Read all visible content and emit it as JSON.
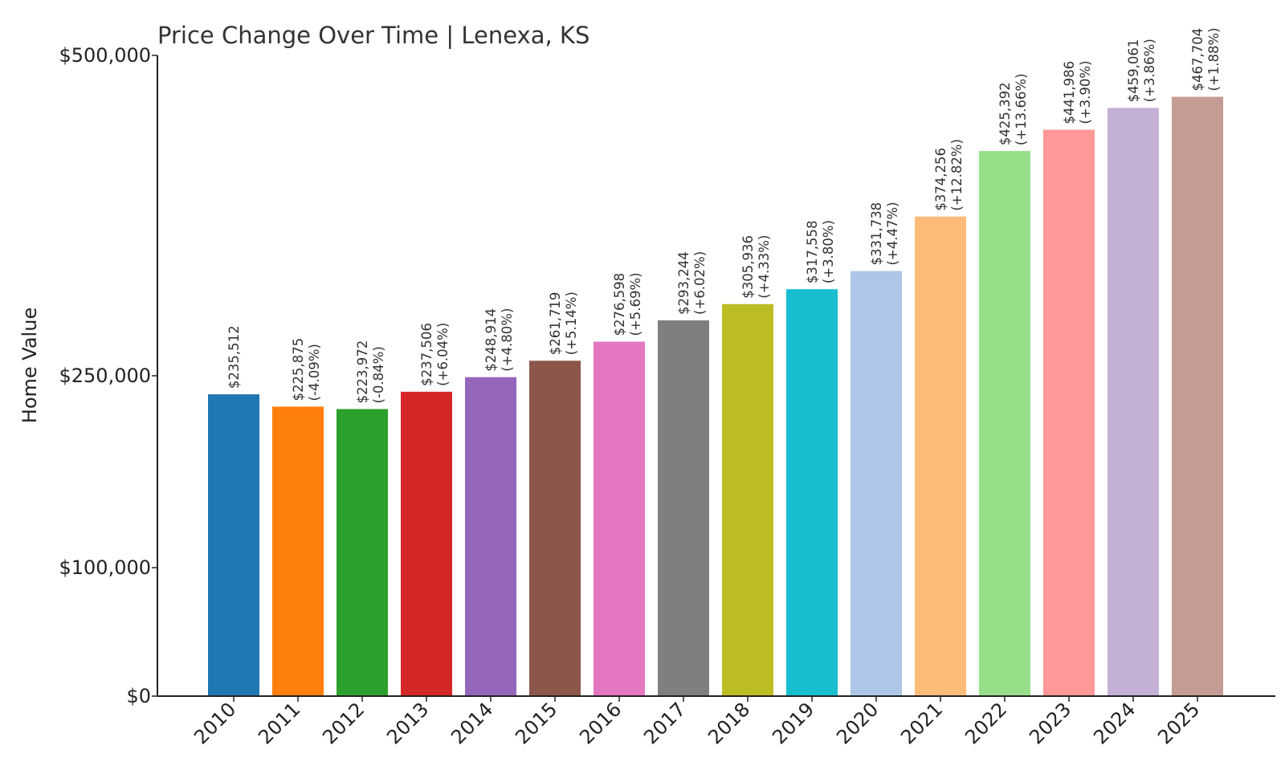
{
  "chart_data": {
    "type": "bar",
    "title": "Price Change Over Time | Lenexa, KS",
    "xlabel": "",
    "ylabel": "Home Value",
    "ylim": [
      0,
      500000
    ],
    "yticks": [
      {
        "value": 0,
        "label": "$0"
      },
      {
        "value": 100000,
        "label": "$100,000"
      },
      {
        "value": 250000,
        "label": "$250,000"
      },
      {
        "value": 500000,
        "label": "$500,000"
      }
    ],
    "y_scale": "custom piecewise (ticks at $0, $100,000, $250,000, $500,000)",
    "grid": false,
    "categories": [
      "2010",
      "2011",
      "2012",
      "2013",
      "2014",
      "2015",
      "2016",
      "2017",
      "2018",
      "2019",
      "2020",
      "2021",
      "2022",
      "2023",
      "2024",
      "2025"
    ],
    "values": [
      235512,
      225875,
      223972,
      237506,
      248914,
      261719,
      276598,
      293244,
      305936,
      317558,
      331738,
      374256,
      425392,
      441986,
      459061,
      467704
    ],
    "value_labels": [
      "$235,512",
      "$225,875",
      "$223,972",
      "$237,506",
      "$248,914",
      "$261,719",
      "$276,598",
      "$293,244",
      "$305,936",
      "$317,558",
      "$331,738",
      "$374,256",
      "$425,392",
      "$441,986",
      "$459,061",
      "$467,704"
    ],
    "change_labels": [
      "",
      "(-4.09%)",
      "(-0.84%)",
      "(+6.04%)",
      "(+4.80%)",
      "(+5.14%)",
      "(+5.69%)",
      "(+6.02%)",
      "(+4.33%)",
      "(+3.80%)",
      "(+4.47%)",
      "(+12.82%)",
      "(+13.66%)",
      "(+3.90%)",
      "(+3.86%)",
      "(+1.88%)"
    ],
    "colors": [
      "#1f77b4",
      "#ff7f0e",
      "#2ca02c",
      "#d62728",
      "#9467bd",
      "#8c564b",
      "#e377c2",
      "#7f7f7f",
      "#bcbd22",
      "#17becf",
      "#aec7e8",
      "#ffbb78",
      "#98df8a",
      "#ff9896",
      "#c5b0d5",
      "#c49c94"
    ]
  }
}
